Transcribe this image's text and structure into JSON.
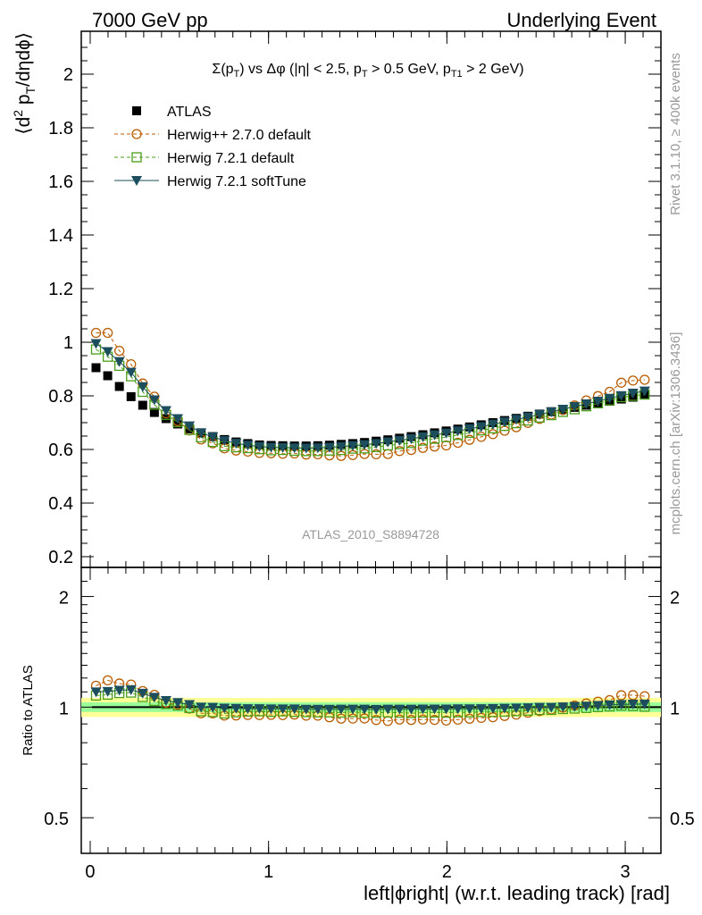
{
  "header": {
    "left": "7000 GeV pp",
    "right": "Underlying Event"
  },
  "side_labels": {
    "rivet": "Rivet 3.1.10, ≥ 400k events",
    "mcplots": "mcplots.cern.ch [arXiv:1306.3436]"
  },
  "analysis_id": "ATLAS_2010_S8894728",
  "plot_title": {
    "prefix": "Σ(p",
    "sub1": "T",
    "mid": ") vs Δφ (|η| < 2.5, p",
    "sub2": "T",
    "mid2": " > 0.5 GeV, p",
    "sub3": "T1",
    "end": " > 2 GeV)"
  },
  "ylabel_top": {
    "pre": "⟨d",
    "sup": "2",
    "mid": " p",
    "sub": "T",
    "post": "/dηdϕ⟩"
  },
  "ylabel_bottom": "Ratio to ATLAS",
  "xlabel": "left|ϕright| (w.r.t. leading track) [rad]",
  "legend": [
    {
      "name": "ATLAS",
      "color": "#000000",
      "marker": "square-filled"
    },
    {
      "name": "Herwig++ 2.7.0 default",
      "color": "#b85c00",
      "marker": "circle-open"
    },
    {
      "name": "Herwig 7.2.1 default",
      "color": "#4a9e1a",
      "marker": "square-open"
    },
    {
      "name": "Herwig 7.2.1 softTune",
      "color": "#1c4e5e",
      "marker": "triangle-down-filled"
    }
  ],
  "chart_data": {
    "type": "scatter",
    "x": [
      0.0327,
      0.0982,
      0.1636,
      0.2291,
      0.2945,
      0.36,
      0.4254,
      0.4909,
      0.5563,
      0.6218,
      0.6872,
      0.7527,
      0.8181,
      0.8836,
      0.949,
      1.0145,
      1.0799,
      1.1454,
      1.2108,
      1.2763,
      1.3417,
      1.4072,
      1.4726,
      1.5381,
      1.6035,
      1.669,
      1.7344,
      1.7999,
      1.8653,
      1.9308,
      1.9962,
      2.0617,
      2.1271,
      2.1926,
      2.258,
      2.3235,
      2.3889,
      2.4544,
      2.5198,
      2.5853,
      2.6507,
      2.7162,
      2.7816,
      2.8471,
      2.9125,
      2.978,
      3.0434,
      3.1089
    ],
    "series": [
      {
        "name": "ATLAS",
        "values": [
          0.905,
          0.875,
          0.835,
          0.797,
          0.765,
          0.738,
          0.715,
          0.695,
          0.677,
          0.662,
          0.648,
          0.637,
          0.628,
          0.622,
          0.617,
          0.615,
          0.614,
          0.613,
          0.613,
          0.614,
          0.616,
          0.619,
          0.622,
          0.626,
          0.631,
          0.636,
          0.642,
          0.648,
          0.655,
          0.662,
          0.669,
          0.676,
          0.684,
          0.692,
          0.7,
          0.708,
          0.716,
          0.724,
          0.732,
          0.741,
          0.749,
          0.757,
          0.765,
          0.772,
          0.78,
          0.788,
          0.795,
          0.803
        ]
      },
      {
        "name": "Herwig++ 2.7.0 default",
        "values": [
          1.035,
          1.035,
          0.968,
          0.918,
          0.846,
          0.797,
          0.735,
          0.706,
          0.671,
          0.637,
          0.623,
          0.604,
          0.596,
          0.592,
          0.587,
          0.586,
          0.584,
          0.585,
          0.581,
          0.582,
          0.578,
          0.576,
          0.579,
          0.583,
          0.582,
          0.583,
          0.594,
          0.598,
          0.606,
          0.611,
          0.615,
          0.625,
          0.636,
          0.647,
          0.657,
          0.67,
          0.683,
          0.699,
          0.714,
          0.73,
          0.747,
          0.764,
          0.783,
          0.799,
          0.815,
          0.849,
          0.857,
          0.86
        ]
      },
      {
        "name": "Herwig 7.2.1 default",
        "values": [
          0.973,
          0.946,
          0.912,
          0.873,
          0.815,
          0.767,
          0.729,
          0.702,
          0.673,
          0.645,
          0.628,
          0.612,
          0.608,
          0.605,
          0.601,
          0.597,
          0.598,
          0.595,
          0.594,
          0.594,
          0.596,
          0.598,
          0.603,
          0.604,
          0.609,
          0.615,
          0.62,
          0.624,
          0.633,
          0.64,
          0.646,
          0.654,
          0.662,
          0.671,
          0.679,
          0.688,
          0.698,
          0.708,
          0.719,
          0.728,
          0.74,
          0.75,
          0.761,
          0.772,
          0.783,
          0.795,
          0.8,
          0.805
        ]
      },
      {
        "name": "Herwig 7.2.1 softTune",
        "values": [
          0.995,
          0.965,
          0.928,
          0.888,
          0.834,
          0.785,
          0.745,
          0.715,
          0.688,
          0.662,
          0.647,
          0.633,
          0.623,
          0.616,
          0.611,
          0.608,
          0.607,
          0.606,
          0.605,
          0.606,
          0.608,
          0.611,
          0.614,
          0.618,
          0.622,
          0.628,
          0.634,
          0.64,
          0.647,
          0.654,
          0.661,
          0.669,
          0.677,
          0.685,
          0.694,
          0.703,
          0.712,
          0.721,
          0.731,
          0.74,
          0.75,
          0.76,
          0.77,
          0.78,
          0.791,
          0.801,
          0.81,
          0.818
        ]
      }
    ],
    "ratio": {
      "ylabel": "Ratio to ATLAS",
      "yscale": "log",
      "ylim": [
        0.4,
        2.4
      ],
      "band_inner": [
        0.97,
        1.03
      ],
      "band_outer": [
        0.94,
        1.06
      ]
    },
    "xlim": [
      -0.05,
      3.2
    ],
    "ylim": [
      0.16,
      2.16
    ],
    "xticks": [
      "0",
      "1",
      "2",
      "3"
    ],
    "yticks": [
      "0.2",
      "0.4",
      "0.6",
      "0.8",
      "1",
      "1.2",
      "1.4",
      "1.6",
      "1.8",
      "2"
    ],
    "ratio_yticks": [
      "0.5",
      "1",
      "2"
    ],
    "title": "Σ(pT) vs Δφ (|η| < 2.5, pT > 0.5 GeV, pT1 > 2 GeV)",
    "xlabel": "left|ϕright| (w.r.t. leading track) [rad]",
    "ylabel": "⟨d2 pT/dηdϕ⟩"
  }
}
